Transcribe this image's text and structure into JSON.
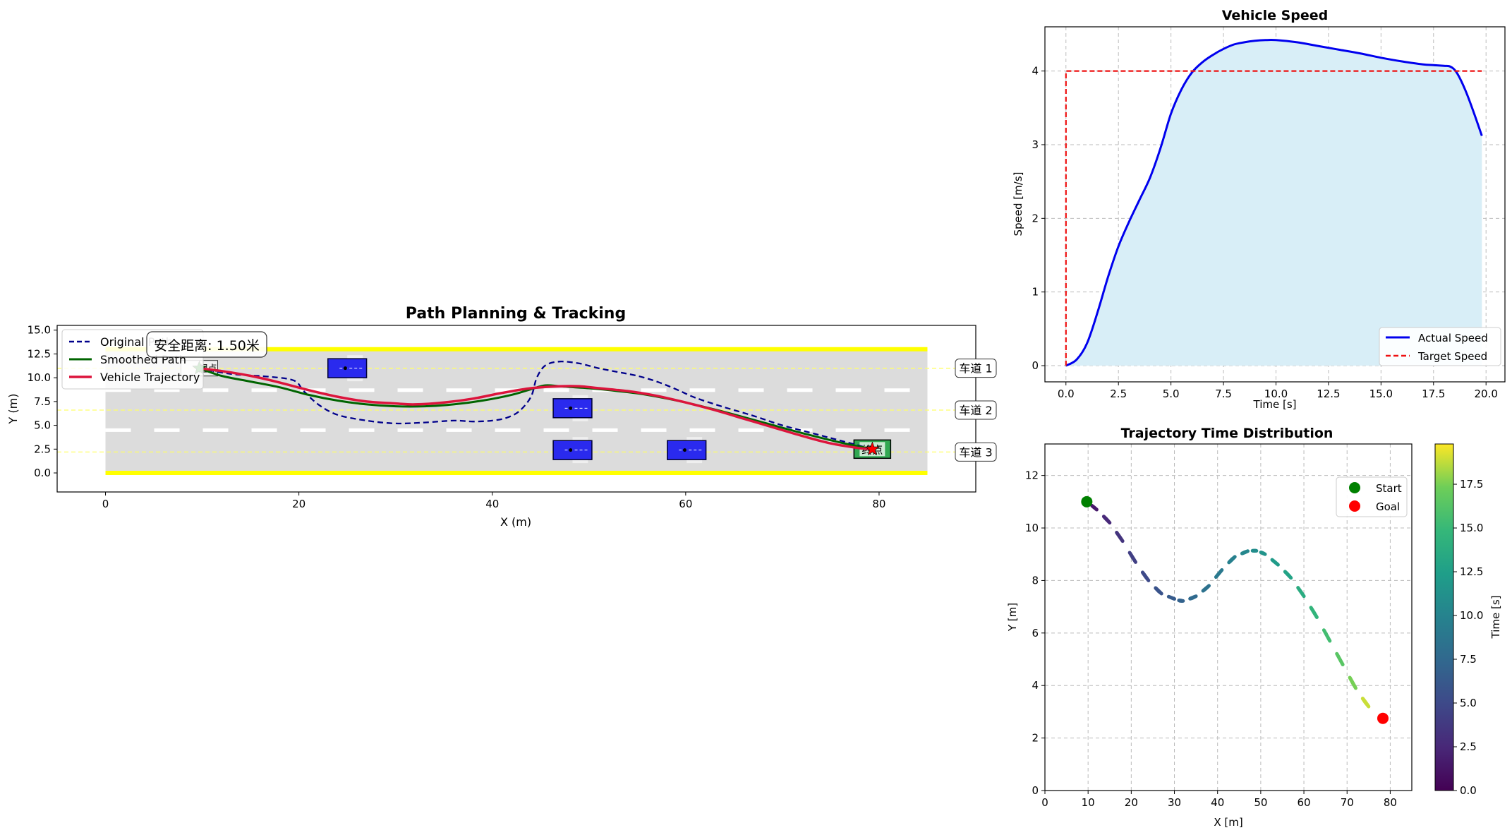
{
  "chart_data": [
    {
      "id": "path",
      "type": "line",
      "title": "Path Planning & Tracking",
      "xlabel": "X (m)",
      "ylabel": "Y (m)",
      "xlim": [
        -5,
        90
      ],
      "ylim": [
        -2,
        15.5
      ],
      "xticks": [
        0,
        20,
        40,
        60,
        80
      ],
      "yticks": [
        0.0,
        2.5,
        5.0,
        7.5,
        10.0,
        12.5,
        15.0
      ],
      "road": {
        "x": [
          0,
          85
        ],
        "y": [
          0,
          13
        ],
        "lane_dividers": [
          4.5,
          8.7
        ],
        "road_color": "#dcdcdc",
        "edge_color": "#ffff00"
      },
      "lanes": [
        {
          "label": "车道 1",
          "y": 11.0
        },
        {
          "label": "车道 2",
          "y": 6.6
        },
        {
          "label": "车道 3",
          "y": 2.2
        }
      ],
      "obstacles": [
        {
          "x": 25,
          "y": 11.0,
          "w": 4,
          "h": 2
        },
        {
          "x": 48.3,
          "y": 6.8,
          "w": 4,
          "h": 2
        },
        {
          "x": 48.3,
          "y": 2.4,
          "w": 4,
          "h": 2
        },
        {
          "x": 60.1,
          "y": 2.4,
          "w": 4,
          "h": 2
        }
      ],
      "start": {
        "x": 9.7,
        "y": 11.0,
        "label": "起点"
      },
      "goal": {
        "x": 79.3,
        "y": 2.5,
        "label": "终点"
      },
      "annotation": "安全距离: 1.50米",
      "legend": {
        "position": "top-left",
        "entries": [
          "Original Path",
          "Smoothed Path",
          "Vehicle Trajectory"
        ]
      },
      "series": [
        {
          "name": "Original Path",
          "color": "#00008b",
          "dash": true,
          "x": [
            9.7,
            13,
            17,
            19.5,
            20.5,
            22,
            24,
            27,
            30,
            33,
            36,
            38,
            40,
            41.5,
            42.8,
            44,
            44.6,
            45.5,
            47,
            49,
            51,
            53,
            55,
            57,
            59,
            61,
            64,
            67,
            70,
            73,
            76,
            79.3
          ],
          "y": [
            11.0,
            10.4,
            10.1,
            9.7,
            8.6,
            7.2,
            6.1,
            5.5,
            5.2,
            5.3,
            5.5,
            5.4,
            5.5,
            5.8,
            6.5,
            8.0,
            10.0,
            11.3,
            11.7,
            11.5,
            11.0,
            10.6,
            10.2,
            9.6,
            8.8,
            7.9,
            6.9,
            6.0,
            5.0,
            4.2,
            3.4,
            2.5
          ]
        },
        {
          "name": "Smoothed Path",
          "color": "#006400",
          "dash": false,
          "x": [
            9.7,
            12,
            15,
            18,
            21,
            24,
            27,
            30,
            33,
            36,
            39,
            42,
            44,
            45.5,
            47,
            50,
            53,
            56,
            60,
            64,
            68,
            72,
            76,
            79.3
          ],
          "y": [
            11.0,
            10.2,
            9.6,
            9.0,
            8.2,
            7.6,
            7.2,
            7.0,
            7.0,
            7.2,
            7.6,
            8.2,
            8.8,
            9.2,
            9.1,
            8.9,
            8.6,
            8.2,
            7.4,
            6.4,
            5.3,
            4.2,
            3.2,
            2.5
          ]
        },
        {
          "name": "Vehicle Trajectory",
          "color": "#dc143c",
          "dash": false,
          "x": [
            9.7,
            12,
            15,
            18,
            21,
            24,
            27,
            30,
            32,
            35,
            38,
            41,
            44,
            47,
            49,
            51,
            54,
            57,
            60,
            63,
            66,
            69,
            72,
            75,
            78,
            79.3
          ],
          "y": [
            11.0,
            10.7,
            10.2,
            9.5,
            8.7,
            8.0,
            7.5,
            7.3,
            7.2,
            7.4,
            7.8,
            8.4,
            8.9,
            9.1,
            9.1,
            8.9,
            8.6,
            8.1,
            7.4,
            6.6,
            5.7,
            4.8,
            3.9,
            3.1,
            2.6,
            2.5
          ]
        }
      ]
    },
    {
      "id": "speed",
      "type": "area",
      "title": "Vehicle Speed",
      "xlabel": "Time [s]",
      "ylabel": "Speed [m/s]",
      "xlim": [
        -1,
        20.9
      ],
      "ylim": [
        -0.22,
        4.6
      ],
      "xticks": [
        0.0,
        2.5,
        5.0,
        7.5,
        10.0,
        12.5,
        15.0,
        17.5,
        20.0
      ],
      "yticks": [
        0,
        1,
        2,
        3,
        4
      ],
      "grid": true,
      "legend": {
        "position": "bottom-right",
        "entries": [
          "Actual Speed",
          "Target Speed"
        ]
      },
      "series": [
        {
          "name": "Actual Speed",
          "color": "#0000ee",
          "fill": "#d8eef7",
          "x": [
            0,
            0.5,
            1,
            1.5,
            2,
            2.5,
            3,
            3.5,
            4,
            4.5,
            5,
            5.5,
            6,
            6.5,
            7,
            7.5,
            8,
            8.5,
            9,
            9.5,
            10,
            11,
            12,
            13,
            14,
            15,
            16,
            17,
            17.5,
            18,
            18.3,
            18.6,
            19,
            19.4,
            19.8
          ],
          "y": [
            0,
            0.08,
            0.3,
            0.72,
            1.2,
            1.62,
            1.95,
            2.25,
            2.55,
            2.95,
            3.42,
            3.75,
            3.98,
            4.12,
            4.22,
            4.3,
            4.36,
            4.39,
            4.41,
            4.42,
            4.42,
            4.39,
            4.34,
            4.29,
            4.24,
            4.18,
            4.13,
            4.09,
            4.08,
            4.07,
            4.06,
            3.98,
            3.75,
            3.45,
            3.12
          ]
        },
        {
          "name": "Target Speed",
          "color": "#ee1111",
          "dash": true,
          "x": [
            0,
            0,
            19.8
          ],
          "y": [
            0,
            4,
            4
          ]
        }
      ]
    },
    {
      "id": "time",
      "type": "scatter",
      "title": "Trajectory Time Distribution",
      "xlabel": "X [m]",
      "ylabel": "Y [m]",
      "xlim": [
        0,
        85
      ],
      "ylim": [
        0,
        13.2
      ],
      "xticks": [
        0,
        10,
        20,
        30,
        40,
        50,
        60,
        70,
        80
      ],
      "yticks": [
        0,
        2,
        4,
        6,
        8,
        10,
        12
      ],
      "grid": true,
      "colorbar": {
        "label": "Time [s]",
        "ticks": [
          0.0,
          2.5,
          5.0,
          7.5,
          10.0,
          12.5,
          15.0,
          17.5
        ],
        "max": 19.8
      },
      "legend": {
        "position": "top-right",
        "entries": [
          "Start",
          "Goal"
        ]
      },
      "start": {
        "name": "Start",
        "x": 9.7,
        "y": 11.0,
        "color": "#008000"
      },
      "goal": {
        "name": "Goal",
        "x": 78.3,
        "y": 2.75,
        "color": "#ff0000"
      },
      "trajectory": {
        "x": [
          9.7,
          12,
          15,
          18,
          21,
          24,
          27,
          30,
          32,
          35,
          38,
          41,
          44,
          47,
          49,
          51,
          54,
          57,
          60,
          63,
          66,
          69,
          72,
          75,
          78.3
        ],
        "y": [
          11.0,
          10.7,
          10.2,
          9.5,
          8.7,
          8.0,
          7.5,
          7.3,
          7.22,
          7.4,
          7.8,
          8.4,
          8.9,
          9.12,
          9.13,
          9.0,
          8.6,
          8.1,
          7.4,
          6.6,
          5.7,
          4.8,
          3.9,
          3.2,
          2.75
        ],
        "t": [
          0,
          1.1,
          2.1,
          3.0,
          3.8,
          4.6,
          5.4,
          6.1,
          6.6,
          7.3,
          8.0,
          8.7,
          9.4,
          10.1,
          10.6,
          11.1,
          11.8,
          12.5,
          13.3,
          14.1,
          15.0,
          15.9,
          16.9,
          18.0,
          19.8
        ]
      }
    }
  ]
}
